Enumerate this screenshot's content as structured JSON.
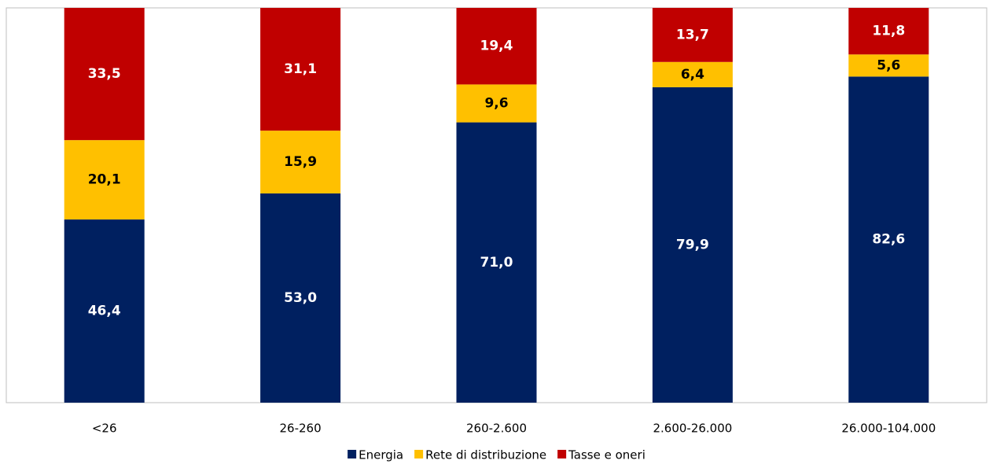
{
  "chart_data": {
    "type": "stacked_bar",
    "categories": [
      "<26",
      "26-260",
      "260-2.600",
      "2.600-26.000",
      "26.000-104.000"
    ],
    "series": [
      {
        "name": "Energia",
        "color": "#002060",
        "values": [
          46.4,
          53.0,
          71.0,
          79.9,
          82.6
        ],
        "value_labels": [
          "46,4",
          "53,0",
          "71,0",
          "79,9",
          "82,6"
        ]
      },
      {
        "name": "Rete di distribuzione",
        "color": "#ffc000",
        "values": [
          20.1,
          15.9,
          9.6,
          6.4,
          5.6
        ],
        "value_labels": [
          "20,1",
          "15,9",
          "9,6",
          "6,4",
          "5,6"
        ]
      },
      {
        "name": "Tasse e oneri",
        "color": "#c00000",
        "values": [
          33.5,
          31.1,
          19.4,
          13.7,
          11.8
        ],
        "value_labels": [
          "33,5",
          "31,1",
          "19,4",
          "13,7",
          "11,8"
        ]
      }
    ],
    "ylim": [
      0,
      100
    ],
    "legend": "bottom"
  }
}
